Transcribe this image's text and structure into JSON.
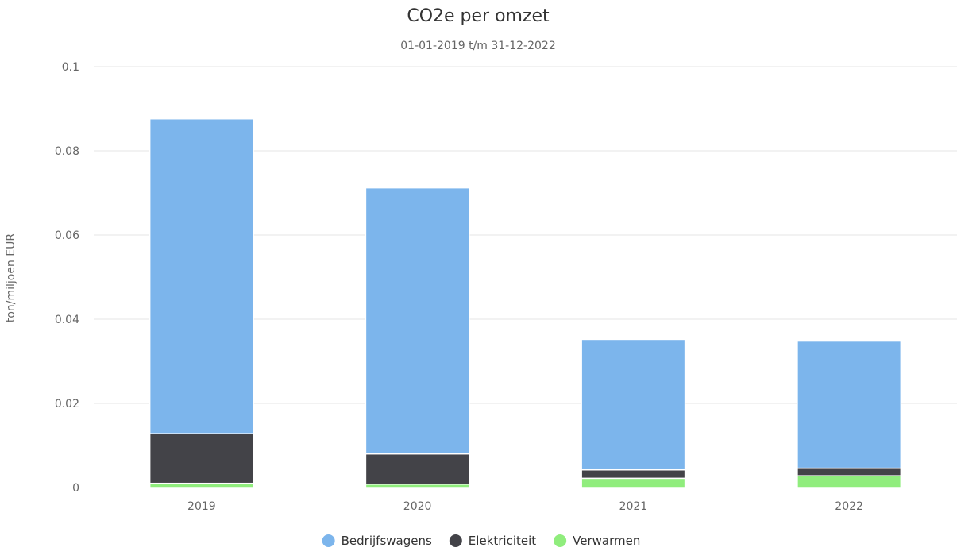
{
  "chart_data": {
    "type": "bar",
    "stacked": true,
    "title": "CO2e per omzet",
    "subtitle": "01-01-2019 t/m 31-12-2022",
    "xlabel": "",
    "ylabel": "ton/miljoen EUR",
    "ylim": [
      0,
      0.1
    ],
    "yticks": [
      "0",
      "0.02",
      "0.04",
      "0.06",
      "0.08",
      "0.1"
    ],
    "categories": [
      "2019",
      "2020",
      "2021",
      "2022"
    ],
    "grid": true,
    "legend_position": "bottom",
    "series": [
      {
        "name": "Verwarmen",
        "color": "#90ed7d",
        "values": [
          0.001,
          0.0008,
          0.0022,
          0.0028
        ]
      },
      {
        "name": "Elektriciteit",
        "color": "#434348",
        "values": [
          0.0118,
          0.0072,
          0.002,
          0.0018
        ]
      },
      {
        "name": "Bedrijfswagens",
        "color": "#7cb5ec",
        "values": [
          0.0748,
          0.0632,
          0.031,
          0.0302
        ]
      }
    ],
    "legend_order": [
      "Bedrijfswagens",
      "Elektriciteit",
      "Verwarmen"
    ]
  }
}
